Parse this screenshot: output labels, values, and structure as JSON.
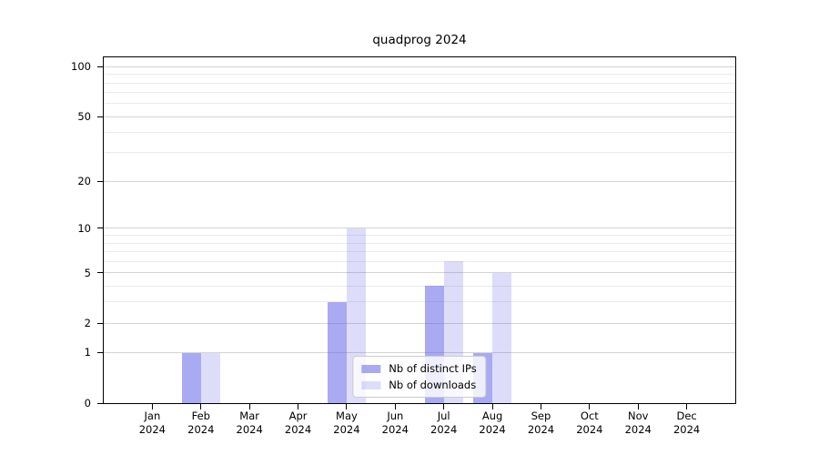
{
  "figure": {
    "title": "quadprog 2024"
  },
  "chart_data": {
    "type": "bar",
    "title": "quadprog 2024",
    "categories": [
      "Jan",
      "Feb",
      "Mar",
      "Apr",
      "May",
      "Jun",
      "Jul",
      "Aug",
      "Sep",
      "Oct",
      "Nov",
      "Dec"
    ],
    "x_tick_line2": "2024",
    "series": [
      {
        "name": "Nb of distinct IPs",
        "color": "#5555e6",
        "alpha": 0.5,
        "values": [
          0,
          1,
          0,
          0,
          3,
          0,
          4,
          1,
          0,
          0,
          0,
          0
        ]
      },
      {
        "name": "Nb of downloads",
        "color": "#5555e6",
        "alpha": 0.2,
        "values": [
          0,
          1,
          0,
          0,
          10,
          0,
          6,
          5,
          0,
          0,
          0,
          0
        ]
      }
    ],
    "xlabel": "",
    "ylabel": "",
    "y_scale": "log10(1+y)",
    "ylim": [
      0,
      114
    ],
    "y_major_ticks": [
      0,
      1,
      2,
      5,
      10,
      20,
      50,
      100
    ],
    "y_minor_ticks": [
      3,
      4,
      6,
      7,
      8,
      9,
      30,
      40,
      60,
      70,
      80,
      90
    ],
    "grid": true,
    "legend_position": "lower center"
  },
  "colors": {
    "major_grid": "#d4d4d4",
    "minor_grid": "#ebebeb",
    "spine": "#000000",
    "legend_border": "#cccccc",
    "legend_background": "rgba(255,255,255,0.8)"
  }
}
